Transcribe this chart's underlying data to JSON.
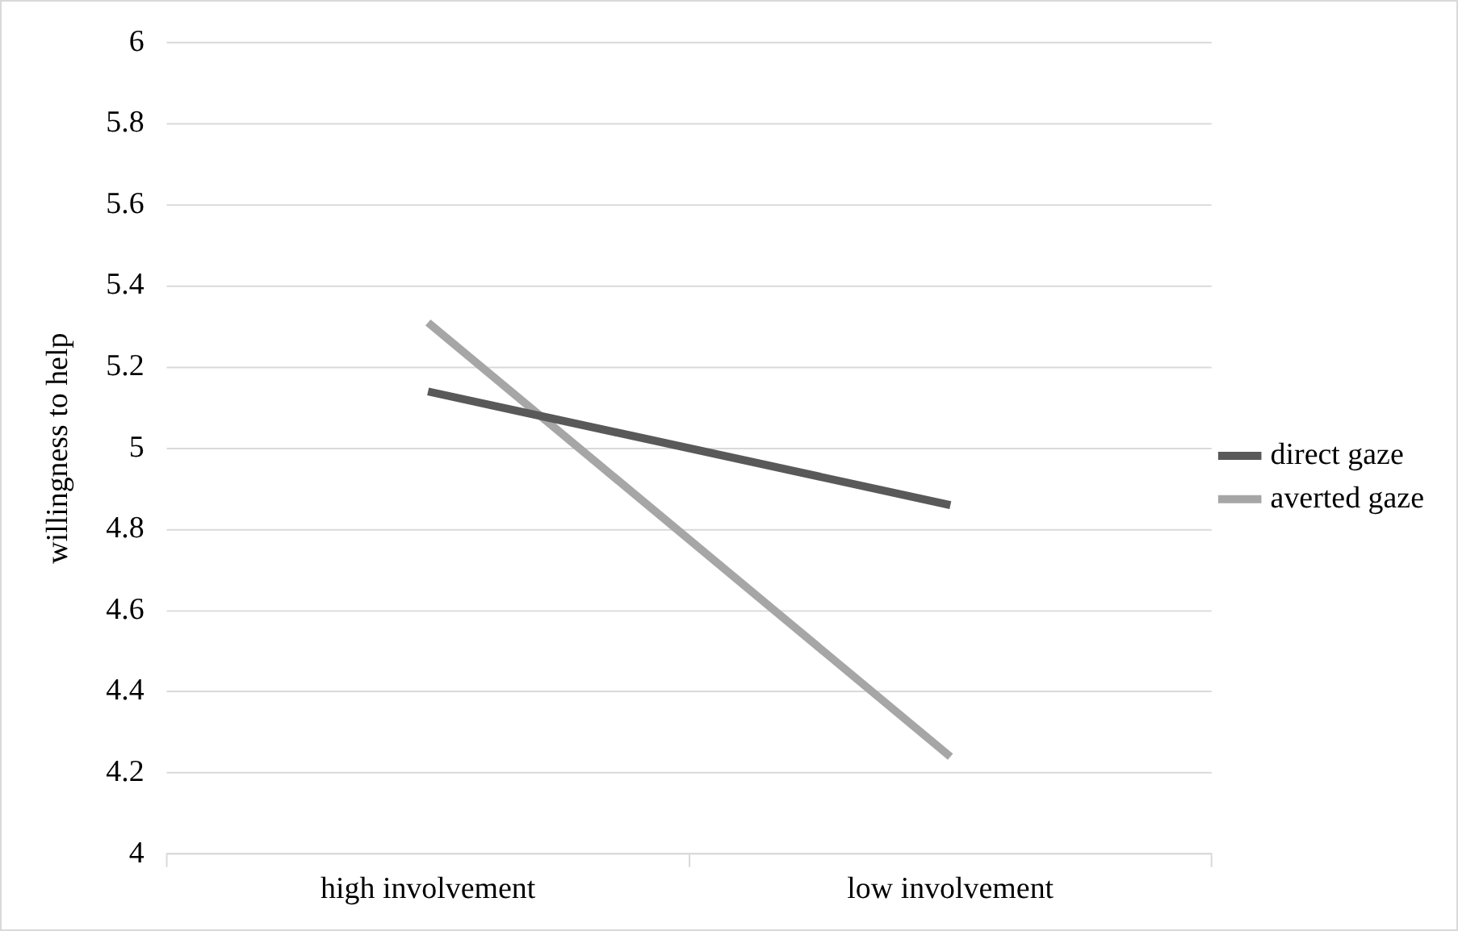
{
  "chart_data": {
    "type": "line",
    "ylabel": "willingness to help",
    "categories": [
      "high involvement",
      "low involvement"
    ],
    "series": [
      {
        "name": "direct gaze",
        "color": "#595959",
        "values": [
          5.14,
          4.86
        ]
      },
      {
        "name": "averted gaze",
        "color": "#a6a6a6",
        "values": [
          5.31,
          4.24
        ]
      }
    ],
    "ylim": [
      4,
      6
    ],
    "yticks": [
      4,
      4.2,
      4.4,
      4.6,
      4.8,
      5,
      5.2,
      5.4,
      5.6,
      5.8,
      6
    ],
    "grid": "y",
    "legend": "right",
    "marker": "none",
    "line_style": "solid"
  }
}
